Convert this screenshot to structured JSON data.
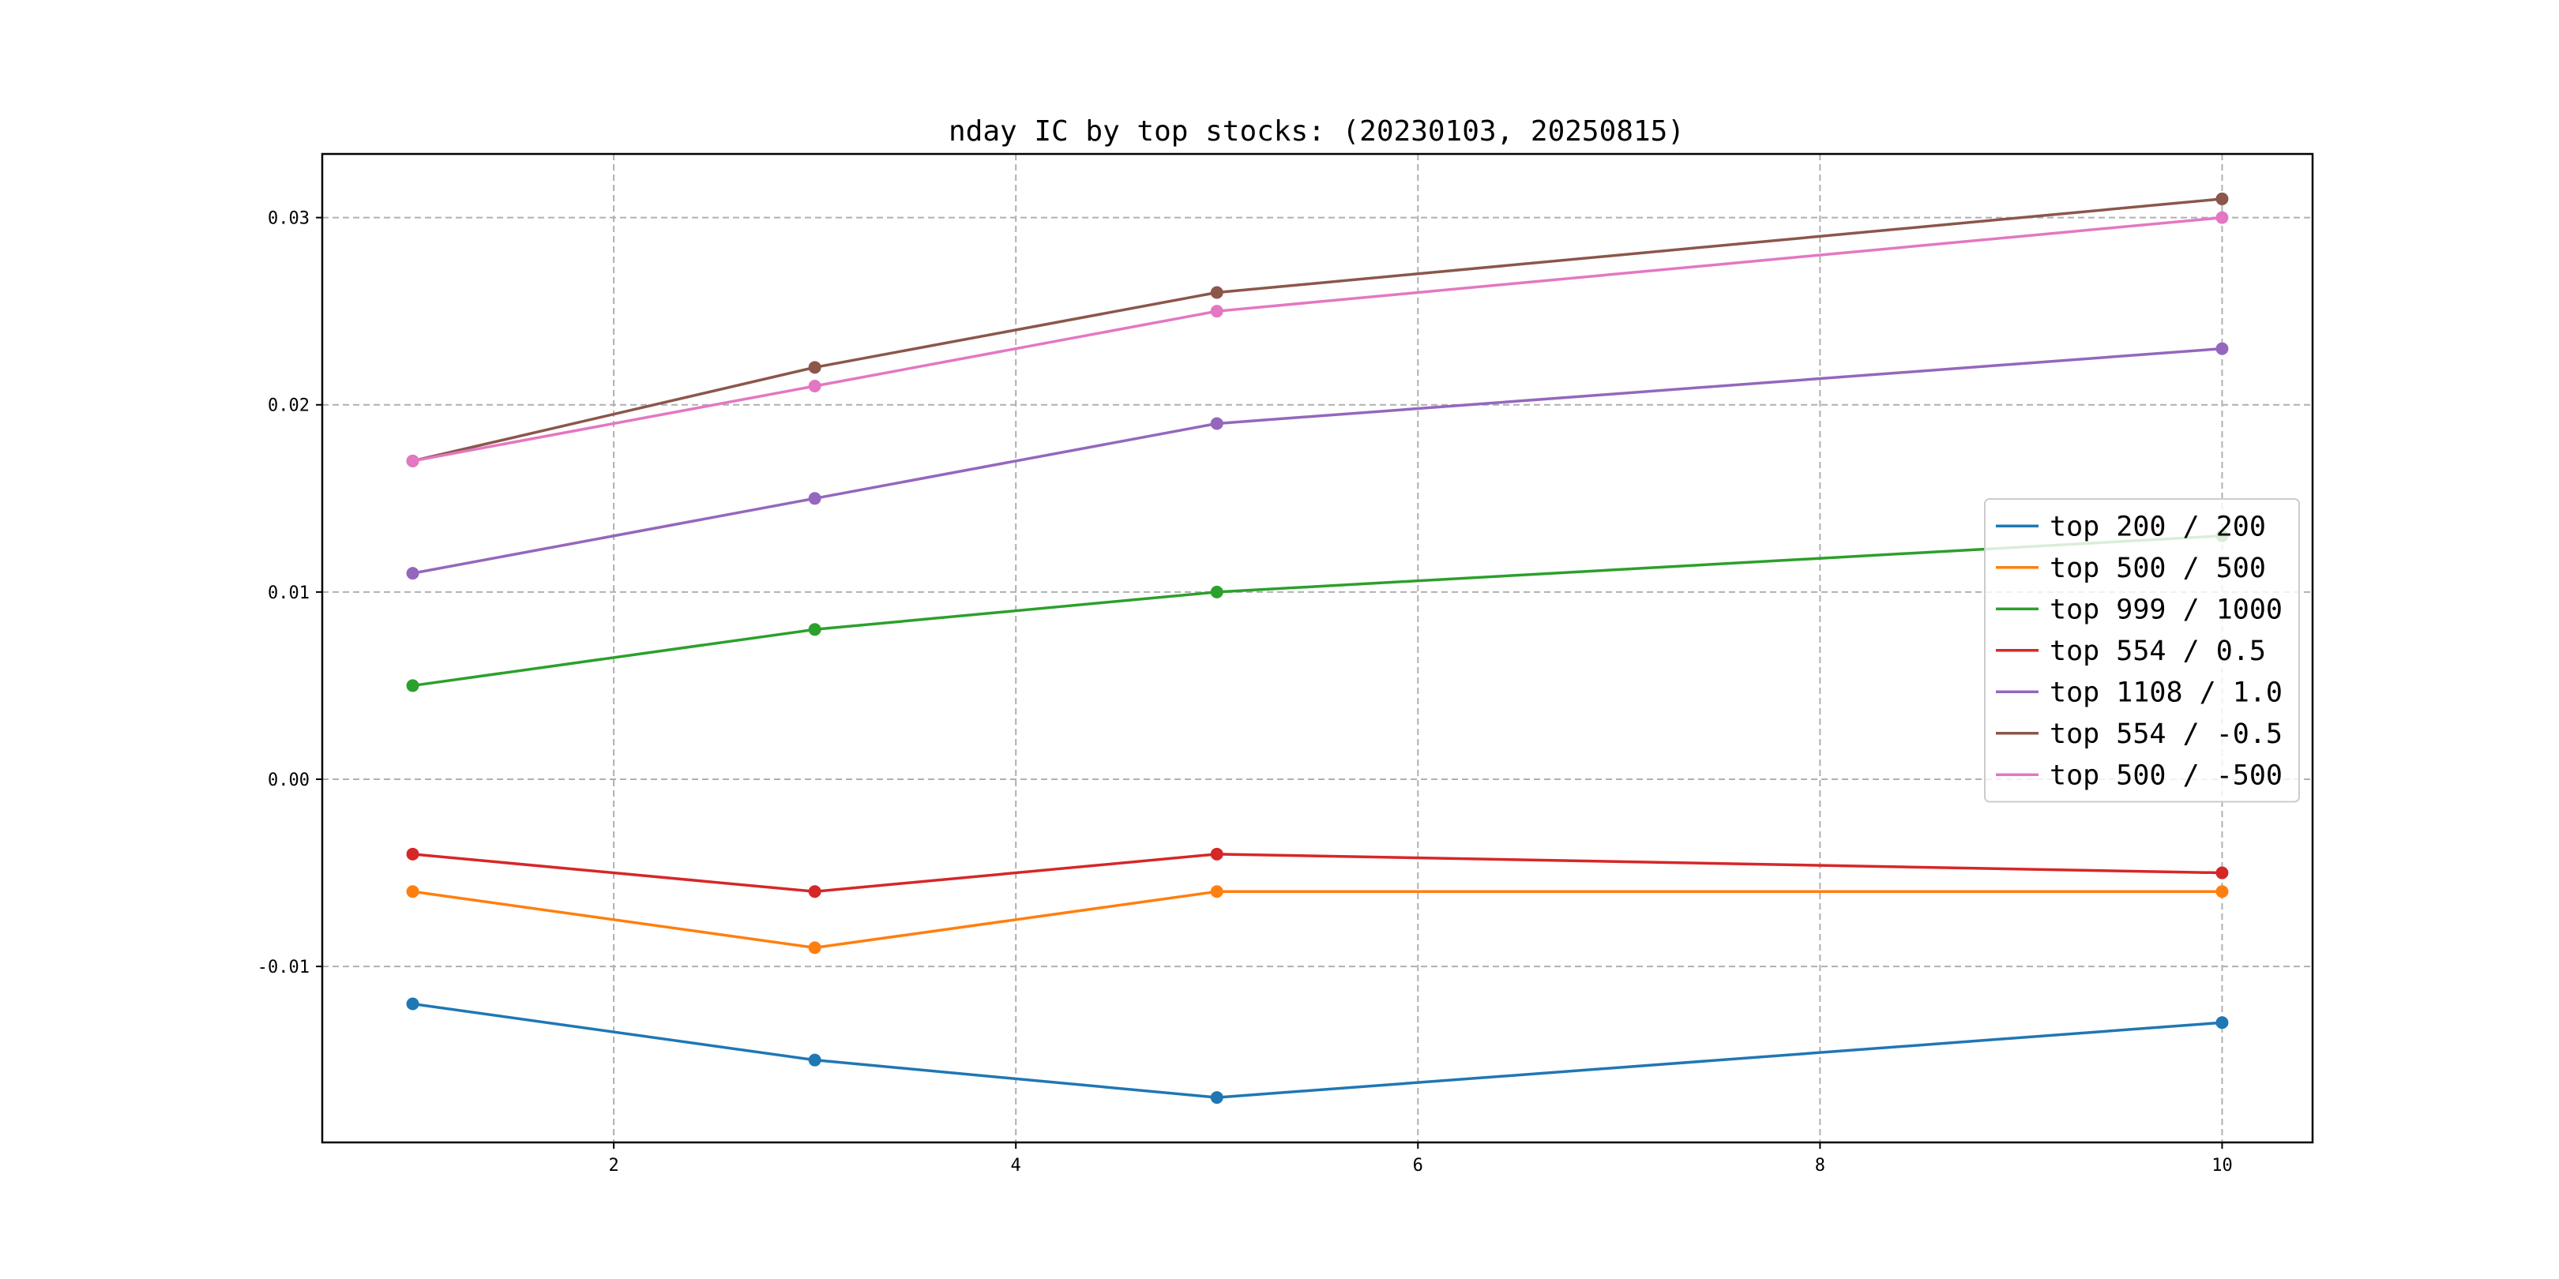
{
  "chart_data": {
    "type": "line",
    "title": "nday IC by top stocks: (20230103, 20250815)",
    "xlabel": "",
    "ylabel": "",
    "x": [
      1,
      3,
      5,
      10
    ],
    "xlim": [
      0.55,
      10.45
    ],
    "ylim": [
      -0.0194,
      0.0334
    ],
    "xticks": [
      2,
      4,
      6,
      8,
      10
    ],
    "xtick_labels": [
      "2",
      "4",
      "6",
      "8",
      "10"
    ],
    "yticks": [
      -0.01,
      0.0,
      0.01,
      0.02,
      0.03
    ],
    "ytick_labels": [
      "-0.01",
      "0.00",
      "0.01",
      "0.02",
      "0.03"
    ],
    "grid": true,
    "legend_position": "center-right",
    "series": [
      {
        "name": "top 200 / 200",
        "color": "#1f77b4",
        "values": [
          -0.012,
          -0.015,
          -0.017,
          -0.013
        ]
      },
      {
        "name": "top 500 / 500",
        "color": "#ff7f0e",
        "values": [
          -0.006,
          -0.009,
          -0.006,
          -0.006
        ]
      },
      {
        "name": "top 999 / 1000",
        "color": "#2ca02c",
        "values": [
          0.005,
          0.008,
          0.01,
          0.013
        ]
      },
      {
        "name": "top 554 / 0.5",
        "color": "#d62728",
        "values": [
          -0.004,
          -0.006,
          -0.004,
          -0.005
        ]
      },
      {
        "name": "top 1108 / 1.0",
        "color": "#9467bd",
        "values": [
          0.011,
          0.015,
          0.019,
          0.023
        ]
      },
      {
        "name": "top 554 / -0.5",
        "color": "#8c564b",
        "values": [
          0.017,
          0.022,
          0.026,
          0.031
        ]
      },
      {
        "name": "top 500 / -500",
        "color": "#e377c2",
        "values": [
          0.017,
          0.021,
          0.025,
          0.03
        ]
      }
    ]
  }
}
